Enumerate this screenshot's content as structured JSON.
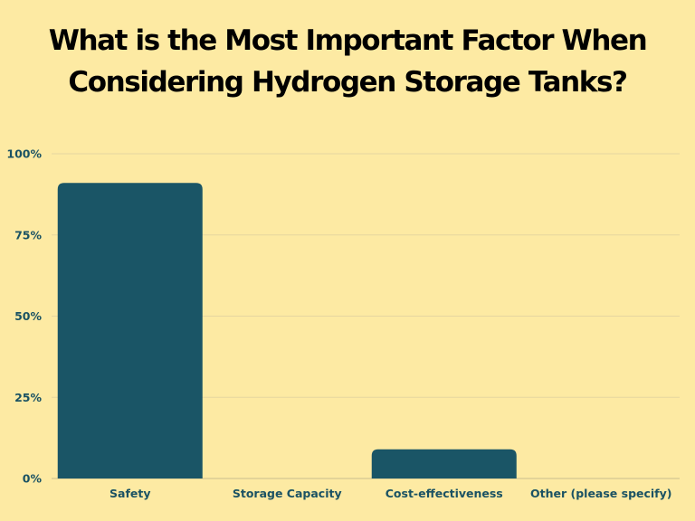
{
  "chart_data": {
    "type": "bar",
    "title_lines": [
      "What is the Most Important Factor When",
      "Considering Hydrogen Storage Tanks?"
    ],
    "categories": [
      "Safety",
      "Storage Capacity",
      "Cost-effectiveness",
      "Other (please specify)"
    ],
    "values": [
      91,
      0,
      9,
      0
    ],
    "ylim": [
      0,
      100
    ],
    "yticks": [
      0,
      25,
      50,
      75,
      100
    ],
    "ytick_labels": [
      "0%",
      "25%",
      "50%",
      "75%",
      "100%"
    ],
    "grid": true,
    "legend": "none",
    "bar_color": "#1a5566",
    "grid_color": "#e5d6a0",
    "axis_color": "#c9bd8c",
    "label_color": "#1a5263"
  }
}
